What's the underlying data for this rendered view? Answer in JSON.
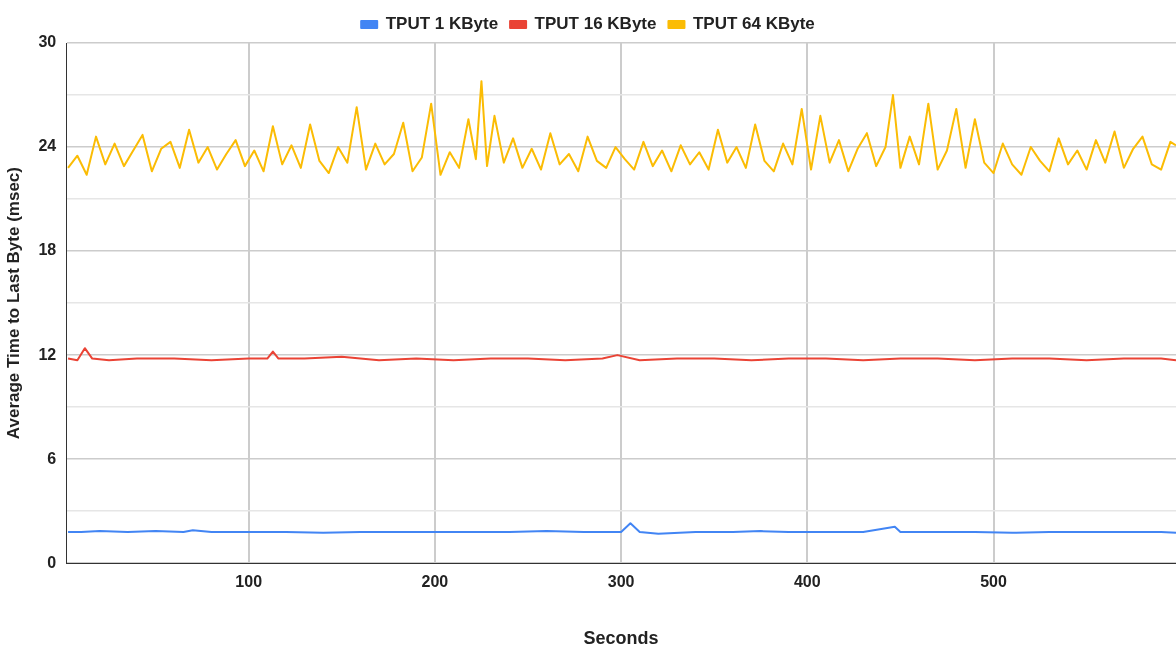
{
  "chart_data": {
    "type": "line",
    "xlabel": "Seconds",
    "ylabel": "Average Time to Last Byte (msec)",
    "xlim": [
      2,
      598
    ],
    "xticks": [
      100,
      200,
      300,
      400,
      500
    ],
    "ylim": [
      0,
      30
    ],
    "yticks": [
      0,
      {
        "value": 3,
        "label": null
      },
      6,
      {
        "value": 9,
        "label": null
      },
      12,
      {
        "value": 15,
        "label": null
      },
      18,
      {
        "value": 21,
        "label": null
      },
      24,
      {
        "value": 27,
        "label": null
      },
      30
    ],
    "grid": true,
    "legend": "top",
    "marker": "none",
    "line_style": "solid",
    "series": [
      {
        "name": "TPUT 1 KByte",
        "color": "#4285f4",
        "x": [
          3,
          10,
          20,
          35,
          50,
          65,
          70,
          80,
          100,
          120,
          140,
          160,
          180,
          200,
          220,
          240,
          260,
          280,
          300,
          305,
          310,
          320,
          340,
          360,
          375,
          390,
          410,
          430,
          447,
          450,
          470,
          490,
          510,
          530,
          550,
          570,
          590,
          598
        ],
        "values": [
          1.8,
          1.8,
          1.85,
          1.8,
          1.85,
          1.8,
          1.9,
          1.8,
          1.8,
          1.8,
          1.75,
          1.8,
          1.8,
          1.8,
          1.8,
          1.8,
          1.85,
          1.8,
          1.8,
          2.3,
          1.8,
          1.7,
          1.8,
          1.8,
          1.85,
          1.8,
          1.8,
          1.8,
          2.1,
          1.8,
          1.8,
          1.8,
          1.75,
          1.8,
          1.8,
          1.8,
          1.8,
          1.75
        ]
      },
      {
        "name": "TPUT 16 KByte",
        "color": "#ea4335",
        "x": [
          3,
          8,
          12,
          16,
          25,
          40,
          60,
          80,
          100,
          110,
          113,
          116,
          130,
          150,
          170,
          190,
          210,
          230,
          250,
          270,
          290,
          298,
          310,
          330,
          350,
          370,
          390,
          410,
          430,
          450,
          470,
          490,
          510,
          530,
          550,
          570,
          590,
          598
        ],
        "values": [
          11.8,
          11.7,
          12.4,
          11.8,
          11.7,
          11.8,
          11.8,
          11.7,
          11.8,
          11.8,
          12.2,
          11.8,
          11.8,
          11.9,
          11.7,
          11.8,
          11.7,
          11.8,
          11.8,
          11.7,
          11.8,
          12.0,
          11.7,
          11.8,
          11.8,
          11.7,
          11.8,
          11.8,
          11.7,
          11.8,
          11.8,
          11.7,
          11.8,
          11.8,
          11.7,
          11.8,
          11.8,
          11.7
        ]
      },
      {
        "name": "TPUT 64 KByte",
        "color": "#fbbc04",
        "x": [
          3,
          8,
          13,
          18,
          23,
          28,
          33,
          38,
          43,
          48,
          53,
          58,
          63,
          68,
          73,
          78,
          83,
          88,
          93,
          98,
          103,
          108,
          113,
          118,
          123,
          128,
          133,
          138,
          143,
          148,
          153,
          158,
          163,
          168,
          173,
          178,
          183,
          188,
          193,
          198,
          203,
          208,
          213,
          218,
          222,
          225,
          228,
          232,
          237,
          242,
          247,
          252,
          257,
          262,
          267,
          272,
          277,
          282,
          287,
          292,
          297,
          302,
          307,
          312,
          317,
          322,
          327,
          332,
          337,
          342,
          347,
          352,
          357,
          362,
          367,
          372,
          377,
          382,
          387,
          392,
          397,
          402,
          407,
          412,
          417,
          422,
          427,
          432,
          437,
          442,
          446,
          450,
          455,
          460,
          465,
          470,
          475,
          480,
          485,
          490,
          495,
          500,
          505,
          510,
          515,
          520,
          525,
          530,
          535,
          540,
          545,
          550,
          555,
          560,
          565,
          570,
          575,
          580,
          585,
          590,
          595,
          598
        ],
        "values": [
          22.8,
          23.5,
          22.4,
          24.6,
          23.0,
          24.2,
          22.9,
          23.8,
          24.7,
          22.6,
          23.9,
          24.3,
          22.8,
          25.0,
          23.1,
          24.0,
          22.7,
          23.6,
          24.4,
          22.9,
          23.8,
          22.6,
          25.2,
          23.0,
          24.1,
          22.8,
          25.3,
          23.2,
          22.5,
          24.0,
          23.1,
          26.3,
          22.7,
          24.2,
          23.0,
          23.6,
          25.4,
          22.6,
          23.4,
          26.5,
          22.4,
          23.7,
          22.8,
          25.6,
          23.3,
          27.8,
          22.9,
          25.8,
          23.1,
          24.5,
          22.8,
          23.9,
          22.7,
          24.8,
          23.0,
          23.6,
          22.6,
          24.6,
          23.2,
          22.8,
          24.0,
          23.3,
          22.7,
          24.3,
          22.9,
          23.8,
          22.6,
          24.1,
          23.0,
          23.7,
          22.7,
          25.0,
          23.1,
          24.0,
          22.8,
          25.3,
          23.2,
          22.6,
          24.2,
          23.0,
          26.2,
          22.7,
          25.8,
          23.1,
          24.4,
          22.6,
          23.9,
          24.8,
          22.9,
          24.0,
          27.0,
          22.8,
          24.6,
          23.0,
          26.5,
          22.7,
          23.8,
          26.2,
          22.8,
          25.6,
          23.1,
          22.5,
          24.2,
          23.0,
          22.4,
          24.0,
          23.2,
          22.6,
          24.5,
          23.0,
          23.8,
          22.7,
          24.4,
          23.1,
          24.9,
          22.8,
          23.9,
          24.6,
          23.0,
          22.7,
          24.3,
          24.1
        ]
      }
    ]
  }
}
